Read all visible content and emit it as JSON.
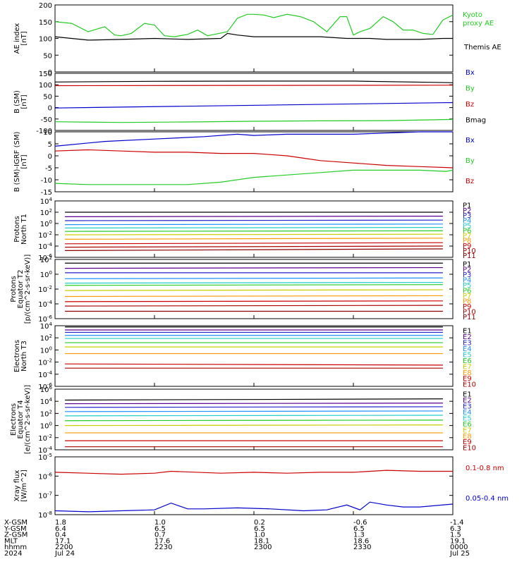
{
  "chart_data": [
    {
      "type": "line",
      "ylabel": [
        "AE index",
        "[nT]"
      ],
      "ylim": [
        0,
        200
      ],
      "yticks": [
        "0",
        "50",
        "100",
        "150",
        "200"
      ],
      "series": [
        {
          "name": "Kyoto proxy AE",
          "color": "#22cc22",
          "x": [
            0,
            5,
            10,
            15,
            18,
            20,
            23,
            27,
            30,
            33,
            36,
            40,
            43,
            46,
            48,
            52,
            55,
            58,
            60,
            63,
            66,
            70,
            74,
            78,
            82,
            86,
            88,
            90,
            92,
            95,
            99,
            102,
            105,
            108,
            111,
            114,
            117,
            120
          ],
          "values": [
            150,
            145,
            120,
            135,
            110,
            108,
            115,
            145,
            140,
            108,
            105,
            112,
            125,
            108,
            112,
            120,
            160,
            172,
            172,
            170,
            162,
            172,
            165,
            150,
            120,
            165,
            165,
            110,
            120,
            130,
            165,
            150,
            125,
            125,
            115,
            112,
            155,
            170
          ]
        },
        {
          "name": "Themis AE",
          "color": "#000000",
          "x": [
            0,
            10,
            20,
            30,
            40,
            50,
            52,
            55,
            60,
            70,
            80,
            88,
            95,
            100,
            110,
            117,
            120
          ],
          "values": [
            105,
            95,
            97,
            100,
            97,
            100,
            115,
            110,
            105,
            105,
            105,
            100,
            100,
            97,
            97,
            100,
            100
          ]
        }
      ]
    },
    {
      "type": "line",
      "ylabel": [
        "B (SM)",
        "[nT]"
      ],
      "ylim": [
        -100,
        150
      ],
      "yticks": [
        "-100",
        "-50",
        "0",
        "50",
        "100",
        "150"
      ],
      "series": [
        {
          "name": "Bx",
          "color": "#0000cc",
          "x": [
            0,
            120
          ],
          "values": [
            -2,
            22
          ]
        },
        {
          "name": "By",
          "color": "#22cc22",
          "x": [
            0,
            20,
            40,
            60,
            80,
            100,
            120
          ],
          "values": [
            -62,
            -65,
            -63,
            -60,
            -58,
            -57,
            -52
          ]
        },
        {
          "name": "Bz",
          "color": "#cc0000",
          "x": [
            0,
            120
          ],
          "values": [
            96,
            98
          ]
        },
        {
          "name": "Bmag",
          "color": "#000000",
          "x": [
            0,
            30,
            60,
            90,
            120
          ],
          "values": [
            112,
            115,
            116,
            116,
            109
          ]
        }
      ]
    },
    {
      "type": "line",
      "ylabel": [
        "B (SM)-IGRF (SM)",
        "[nT]"
      ],
      "ylim": [
        -15,
        10
      ],
      "yticks": [
        "-15",
        "-10",
        "-5",
        "0",
        "5",
        "10"
      ],
      "series": [
        {
          "name": "Bx",
          "color": "#0000cc",
          "x": [
            0,
            15,
            30,
            45,
            55,
            60,
            70,
            80,
            90,
            100,
            110,
            120
          ],
          "values": [
            4,
            6,
            7,
            8,
            9,
            8.5,
            9,
            9,
            9,
            9.5,
            10,
            10
          ]
        },
        {
          "name": "By",
          "color": "#22cc22",
          "x": [
            0,
            10,
            20,
            30,
            40,
            50,
            60,
            70,
            80,
            90,
            100,
            110,
            118,
            120
          ],
          "values": [
            -11.5,
            -12,
            -12,
            -12,
            -12,
            -11,
            -9,
            -8,
            -7,
            -6,
            -6,
            -6,
            -6.5,
            -6
          ]
        },
        {
          "name": "Bz",
          "color": "#cc0000",
          "x": [
            0,
            10,
            20,
            30,
            40,
            50,
            55,
            60,
            65,
            70,
            75,
            80,
            90,
            100,
            110,
            120
          ],
          "values": [
            2,
            2.5,
            2,
            1.5,
            1.5,
            1,
            1,
            1,
            0.5,
            0,
            -1,
            -2,
            -3,
            -4,
            -4.5,
            -5
          ]
        }
      ]
    },
    {
      "type": "line",
      "ylabel": [
        "Protons",
        "North T1"
      ],
      "ylog": true,
      "ylim": [
        -6,
        4
      ],
      "yticks": [
        "10^4",
        "10^2",
        "10^0",
        "10^-2",
        "10^-4",
        "10^-6"
      ],
      "series_levels": [
        {
          "name": "P1",
          "color": "#000000",
          "values": [
            2.0,
            2.0
          ]
        },
        {
          "name": "P2",
          "color": "#5a0090",
          "values": [
            1.2,
            1.3
          ]
        },
        {
          "name": "P3",
          "color": "#2222cc",
          "values": [
            0.5,
            0.6
          ]
        },
        {
          "name": "P4",
          "color": "#1e90ff",
          "values": [
            -0.2,
            -0.1
          ]
        },
        {
          "name": "P5",
          "color": "#22cccc",
          "values": [
            -0.8,
            -0.7
          ]
        },
        {
          "name": "P6",
          "color": "#22cc22",
          "values": [
            -1.4,
            -1.3
          ]
        },
        {
          "name": "P7",
          "color": "#cccc00",
          "values": [
            -2.0,
            -1.9
          ]
        },
        {
          "name": "P8",
          "color": "#ff9900",
          "values": [
            -2.8,
            -2.6
          ]
        },
        {
          "name": "P9",
          "color": "#cc0000",
          "values": [
            -3.6,
            -3.4
          ]
        },
        {
          "name": "P10",
          "color": "#aa0000",
          "values": [
            -4.2,
            -4.0
          ]
        },
        {
          "name": "P11",
          "color": "#880000",
          "values": [
            -4.8,
            -4.5
          ]
        }
      ]
    },
    {
      "type": "line",
      "ylabel": [
        "Protons",
        "Equator T2",
        "[p/(cm^2-s-sr-keV)]"
      ],
      "ylog": true,
      "ylim": [
        -6,
        2
      ],
      "yticks": [
        "10^2",
        "10^0",
        "10^-2",
        "10^-4",
        "10^-6"
      ],
      "series_levels": [
        {
          "name": "P1",
          "color": "#000000",
          "values": [
            1.5,
            1.5
          ]
        },
        {
          "name": "P2",
          "color": "#5a0090",
          "values": [
            0.8,
            0.9
          ]
        },
        {
          "name": "P3",
          "color": "#2222cc",
          "values": [
            0.2,
            0.2
          ]
        },
        {
          "name": "P4",
          "color": "#1e90ff",
          "values": [
            -0.6,
            -0.5
          ]
        },
        {
          "name": "P5",
          "color": "#22cccc",
          "values": [
            -1.2,
            -1.1
          ]
        },
        {
          "name": "P6",
          "color": "#22cc22",
          "values": [
            -1.5,
            -1.4
          ]
        },
        {
          "name": "P7",
          "color": "#cccc00",
          "values": [
            -2.2,
            -2.1
          ]
        },
        {
          "name": "P8",
          "color": "#ff9900",
          "values": [
            -3.0,
            -2.9
          ]
        },
        {
          "name": "P9",
          "color": "#cc0000",
          "values": [
            -3.7,
            -3.6
          ]
        },
        {
          "name": "P10",
          "color": "#aa0000",
          "values": [
            -4.3,
            -4.2
          ]
        },
        {
          "name": "P11",
          "color": "#880000",
          "values": [
            -5.0,
            -5.0
          ]
        }
      ]
    },
    {
      "type": "line",
      "ylabel": [
        "Electrons",
        "North T3"
      ],
      "ylog": true,
      "ylim": [
        -6,
        4
      ],
      "yticks": [
        "10^4",
        "10^2",
        "10^0",
        "10^-2",
        "10^-4",
        "10^-6"
      ],
      "series_levels": [
        {
          "name": "E1",
          "color": "#000000",
          "values": [
            3.8,
            3.8
          ]
        },
        {
          "name": "E2",
          "color": "#5a0090",
          "values": [
            3.3,
            3.3
          ]
        },
        {
          "name": "E3",
          "color": "#2222cc",
          "values": [
            2.9,
            2.9
          ]
        },
        {
          "name": "E4",
          "color": "#1e90ff",
          "values": [
            2.4,
            2.4
          ]
        },
        {
          "name": "E5",
          "color": "#22cccc",
          "values": [
            1.9,
            1.9
          ]
        },
        {
          "name": "E6",
          "color": "#22cc22",
          "values": [
            1.2,
            1.2
          ]
        },
        {
          "name": "E7",
          "color": "#cccc00",
          "values": [
            0.5,
            0.5
          ]
        },
        {
          "name": "E8",
          "color": "#ff9900",
          "values": [
            -0.6,
            -0.6
          ]
        },
        {
          "name": "E9",
          "color": "#cc0000",
          "values": [
            -2.3,
            -2.5
          ]
        },
        {
          "name": "E10",
          "color": "#aa0000",
          "values": [
            -3.0,
            -3.0
          ]
        }
      ]
    },
    {
      "type": "line",
      "ylabel": [
        "Electrons",
        "Equator T4",
        "[e/(cm^2-s-sr-keV)]"
      ],
      "ylog": true,
      "ylim": [
        -4,
        6
      ],
      "yticks": [
        "10^6",
        "10^4",
        "10^2",
        "10^0",
        "10^-2",
        "10^-4"
      ],
      "series_levels": [
        {
          "name": "E1",
          "color": "#000000",
          "values": [
            4.2,
            4.4
          ]
        },
        {
          "name": "E2",
          "color": "#5a0090",
          "values": [
            3.6,
            3.7
          ]
        },
        {
          "name": "E3",
          "color": "#2222cc",
          "values": [
            3.0,
            3.1
          ]
        },
        {
          "name": "E4",
          "color": "#1e90ff",
          "values": [
            2.3,
            2.4
          ]
        },
        {
          "name": "E5",
          "color": "#22cccc",
          "values": [
            1.6,
            1.7
          ]
        },
        {
          "name": "E6",
          "color": "#22cc22",
          "values": [
            0.8,
            0.9
          ]
        },
        {
          "name": "E7",
          "color": "#cccc00",
          "values": [
            0.0,
            0.1
          ]
        },
        {
          "name": "E8",
          "color": "#ff9900",
          "values": [
            -1.2,
            -1.2
          ]
        },
        {
          "name": "E9",
          "color": "#cc0000",
          "values": [
            -2.5,
            -2.5
          ]
        },
        {
          "name": "E10",
          "color": "#aa0000",
          "values": [
            -3.5,
            -3.5
          ]
        }
      ]
    },
    {
      "type": "line",
      "ylabel": [
        "Xray flux",
        "[W/m^2]"
      ],
      "ylog": true,
      "ylim": [
        -8,
        -5
      ],
      "yticks": [
        "10^-5",
        "10^-6",
        "10^-7",
        "10^-8"
      ],
      "series": [
        {
          "name": "0.1-0.8 nm",
          "color": "#cc0000",
          "x": [
            0,
            20,
            30,
            35,
            50,
            60,
            70,
            80,
            90,
            100,
            110,
            120
          ],
          "values": [
            -5.8,
            -5.9,
            -5.85,
            -5.75,
            -5.85,
            -5.8,
            -5.85,
            -5.8,
            -5.8,
            -5.7,
            -5.75,
            -5.75
          ]
        },
        {
          "name": "0.05-0.4 nm",
          "color": "#0000cc",
          "x": [
            0,
            10,
            20,
            30,
            35,
            40,
            45,
            55,
            65,
            75,
            82,
            88,
            92,
            95,
            100,
            105,
            110,
            120
          ],
          "values": [
            -7.8,
            -7.85,
            -7.8,
            -7.75,
            -7.4,
            -7.7,
            -7.7,
            -7.65,
            -7.7,
            -7.8,
            -7.75,
            -7.5,
            -7.75,
            -7.35,
            -7.5,
            -7.6,
            -7.6,
            -7.45
          ]
        }
      ]
    }
  ],
  "legend": {
    "panel1": [
      "Kyoto",
      "proxy AE",
      "Themis AE"
    ],
    "panel2": [
      "Bx",
      "By",
      "Bz",
      "Bmag"
    ],
    "panel3": [
      "Bx",
      "By",
      "Bz"
    ]
  },
  "xaxis": {
    "row_labels": [
      "X-GSM",
      "Y-GSM",
      "Z-GSM",
      "MLT",
      "hhmm",
      "2024"
    ],
    "columns": [
      [
        "1.8",
        "6.4",
        "0.4",
        "17.1",
        "2200",
        "Jul 24"
      ],
      [
        "1.0",
        "6.5",
        "0.7",
        "17.6",
        "2230",
        ""
      ],
      [
        "0.2",
        "6.5",
        "1.0",
        "18.1",
        "2300",
        ""
      ],
      [
        "-0.6",
        "6.5",
        "1.3",
        "18.6",
        "2330",
        ""
      ],
      [
        "-1.4",
        "6.3",
        "1.5",
        "19.1",
        "0000",
        "Jul 25"
      ]
    ]
  }
}
